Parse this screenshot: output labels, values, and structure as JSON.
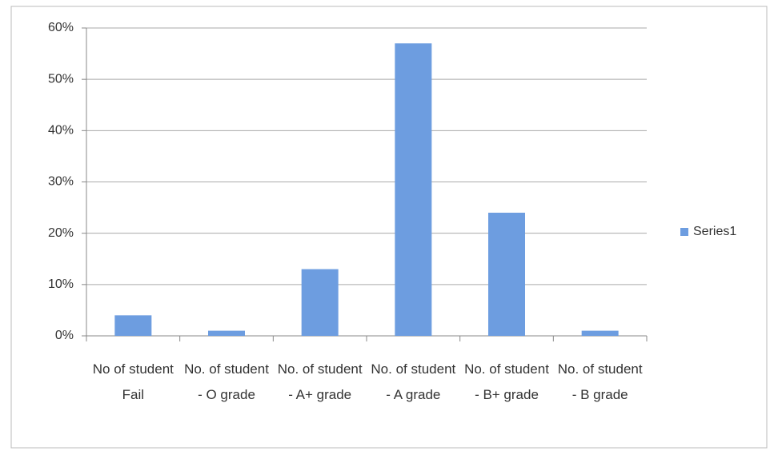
{
  "chart_data": {
    "type": "bar",
    "categories": [
      "No of student Fail",
      "No. of student - O grade",
      "No. of student - A+ grade",
      "No. of student - A grade",
      "No. of student - B+ grade",
      "No. of student - B grade"
    ],
    "series": [
      {
        "name": "Series1",
        "color": "#6d9de0",
        "values": [
          4,
          1,
          13,
          57,
          24,
          1
        ]
      }
    ],
    "ylim": [
      0,
      60
    ],
    "yticks": [
      {
        "value": 0,
        "label": "0%"
      },
      {
        "value": 10,
        "label": "10%"
      },
      {
        "value": 20,
        "label": "20%"
      },
      {
        "value": 30,
        "label": "30%"
      },
      {
        "value": 40,
        "label": "40%"
      },
      {
        "value": 50,
        "label": "50%"
      },
      {
        "value": 60,
        "label": "60%"
      }
    ],
    "grid": true,
    "legend": "right"
  }
}
